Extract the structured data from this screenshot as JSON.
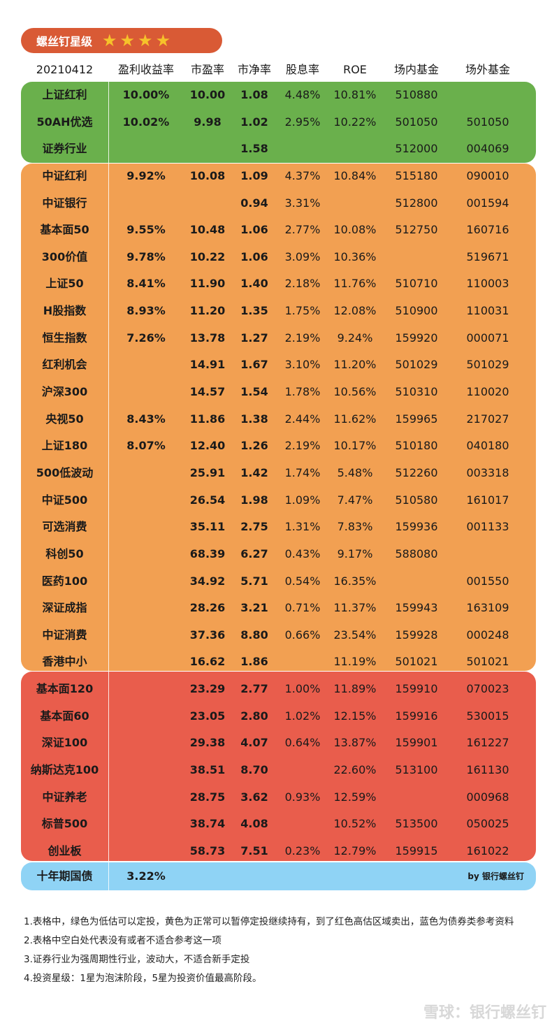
{
  "badge": {
    "title": "螺丝钉星级",
    "stars": [
      "★",
      "★",
      "★",
      "★"
    ]
  },
  "header": {
    "date": "20210412",
    "cols": [
      "盈利收益率",
      "市盈率",
      "市净率",
      "股息率",
      "ROE",
      "场内基金",
      "场外基金"
    ]
  },
  "colors": {
    "green": "#6ab04c",
    "orange": "#f2a052",
    "red": "#e95d4c",
    "blue": "#8fd3f5",
    "badge": "#d95a35",
    "star": "#f6c22a"
  },
  "rows": [
    {
      "name": "上证红利",
      "ey": "10.00%",
      "pe": "10.00",
      "pb": "1.08",
      "dy": "4.48%",
      "roe": "10.81%",
      "inner": "510880",
      "outer": ""
    },
    {
      "name": "50AH优选",
      "ey": "10.02%",
      "pe": "9.98",
      "pb": "1.02",
      "dy": "2.95%",
      "roe": "10.22%",
      "inner": "501050",
      "outer": "501050"
    },
    {
      "name": "证券行业",
      "ey": "",
      "pe": "",
      "pb": "1.58",
      "dy": "",
      "roe": "",
      "inner": "512000",
      "outer": "004069"
    },
    {
      "name": "中证红利",
      "ey": "9.92%",
      "pe": "10.08",
      "pb": "1.09",
      "dy": "4.37%",
      "roe": "10.84%",
      "inner": "515180",
      "outer": "090010"
    },
    {
      "name": "中证银行",
      "ey": "",
      "pe": "",
      "pb": "0.94",
      "dy": "3.31%",
      "roe": "",
      "inner": "512800",
      "outer": "001594"
    },
    {
      "name": "基本面50",
      "ey": "9.55%",
      "pe": "10.48",
      "pb": "1.06",
      "dy": "2.77%",
      "roe": "10.08%",
      "inner": "512750",
      "outer": "160716"
    },
    {
      "name": "300价值",
      "ey": "9.78%",
      "pe": "10.22",
      "pb": "1.06",
      "dy": "3.09%",
      "roe": "10.36%",
      "inner": "",
      "outer": "519671"
    },
    {
      "name": "上证50",
      "ey": "8.41%",
      "pe": "11.90",
      "pb": "1.40",
      "dy": "2.18%",
      "roe": "11.76%",
      "inner": "510710",
      "outer": "110003"
    },
    {
      "name": "H股指数",
      "ey": "8.93%",
      "pe": "11.20",
      "pb": "1.35",
      "dy": "1.75%",
      "roe": "12.08%",
      "inner": "510900",
      "outer": "110031"
    },
    {
      "name": "恒生指数",
      "ey": "7.26%",
      "pe": "13.78",
      "pb": "1.27",
      "dy": "2.19%",
      "roe": "9.24%",
      "inner": "159920",
      "outer": "000071"
    },
    {
      "name": "红利机会",
      "ey": "",
      "pe": "14.91",
      "pb": "1.67",
      "dy": "3.10%",
      "roe": "11.20%",
      "inner": "501029",
      "outer": "501029"
    },
    {
      "name": "沪深300",
      "ey": "",
      "pe": "14.57",
      "pb": "1.54",
      "dy": "1.78%",
      "roe": "10.56%",
      "inner": "510310",
      "outer": "110020"
    },
    {
      "name": "央视50",
      "ey": "8.43%",
      "pe": "11.86",
      "pb": "1.38",
      "dy": "2.44%",
      "roe": "11.62%",
      "inner": "159965",
      "outer": "217027"
    },
    {
      "name": "上证180",
      "ey": "8.07%",
      "pe": "12.40",
      "pb": "1.26",
      "dy": "2.19%",
      "roe": "10.17%",
      "inner": "510180",
      "outer": "040180"
    },
    {
      "name": "500低波动",
      "ey": "",
      "pe": "25.91",
      "pb": "1.42",
      "dy": "1.74%",
      "roe": "5.48%",
      "inner": "512260",
      "outer": "003318"
    },
    {
      "name": "中证500",
      "ey": "",
      "pe": "26.54",
      "pb": "1.98",
      "dy": "1.09%",
      "roe": "7.47%",
      "inner": "510580",
      "outer": "161017"
    },
    {
      "name": "可选消费",
      "ey": "",
      "pe": "35.11",
      "pb": "2.75",
      "dy": "1.31%",
      "roe": "7.83%",
      "inner": "159936",
      "outer": "001133"
    },
    {
      "name": "科创50",
      "ey": "",
      "pe": "68.39",
      "pb": "6.27",
      "dy": "0.43%",
      "roe": "9.17%",
      "inner": "588080",
      "outer": ""
    },
    {
      "name": "医药100",
      "ey": "",
      "pe": "34.92",
      "pb": "5.71",
      "dy": "0.54%",
      "roe": "16.35%",
      "inner": "",
      "outer": "001550"
    },
    {
      "name": "深证成指",
      "ey": "",
      "pe": "28.26",
      "pb": "3.21",
      "dy": "0.71%",
      "roe": "11.37%",
      "inner": "159943",
      "outer": "163109"
    },
    {
      "name": "中证消费",
      "ey": "",
      "pe": "37.36",
      "pb": "8.80",
      "dy": "0.66%",
      "roe": "23.54%",
      "inner": "159928",
      "outer": "000248"
    },
    {
      "name": "香港中小",
      "ey": "",
      "pe": "16.62",
      "pb": "1.86",
      "dy": "",
      "roe": "11.19%",
      "inner": "501021",
      "outer": "501021"
    },
    {
      "name": "基本面120",
      "ey": "",
      "pe": "23.29",
      "pb": "2.77",
      "dy": "1.00%",
      "roe": "11.89%",
      "inner": "159910",
      "outer": "070023"
    },
    {
      "name": "基本面60",
      "ey": "",
      "pe": "23.05",
      "pb": "2.80",
      "dy": "1.02%",
      "roe": "12.15%",
      "inner": "159916",
      "outer": "530015"
    },
    {
      "name": "深证100",
      "ey": "",
      "pe": "29.38",
      "pb": "4.07",
      "dy": "0.64%",
      "roe": "13.87%",
      "inner": "159901",
      "outer": "161227"
    },
    {
      "name": "纳斯达克100",
      "ey": "",
      "pe": "38.51",
      "pb": "8.70",
      "dy": "",
      "roe": "22.60%",
      "inner": "513100",
      "outer": "161130"
    },
    {
      "name": "中证养老",
      "ey": "",
      "pe": "28.75",
      "pb": "3.62",
      "dy": "0.93%",
      "roe": "12.59%",
      "inner": "",
      "outer": "000968"
    },
    {
      "name": "标普500",
      "ey": "",
      "pe": "38.74",
      "pb": "4.08",
      "dy": "",
      "roe": "10.52%",
      "inner": "513500",
      "outer": "050025"
    },
    {
      "name": "创业板",
      "ey": "",
      "pe": "58.73",
      "pb": "7.51",
      "dy": "0.23%",
      "roe": "12.79%",
      "inner": "159915",
      "outer": "161022"
    }
  ],
  "bond": {
    "name": "十年期国债",
    "ey": "3.22%",
    "credit": "by 银行螺丝钉"
  },
  "notes": [
    "1.表格中，绿色为低估可以定投，黄色为正常可以暂停定投继续持有，到了红色高估区域卖出，蓝色为债券类参考资料",
    "2.表格中空白处代表没有或者不适合参考这一项",
    "3.证券行业为强周期性行业，波动大，不适合新手定投",
    "4.投资星级：1星为泡沫阶段，5星为投资价值最高阶段。"
  ],
  "watermark": "雪球：银行螺丝钉"
}
